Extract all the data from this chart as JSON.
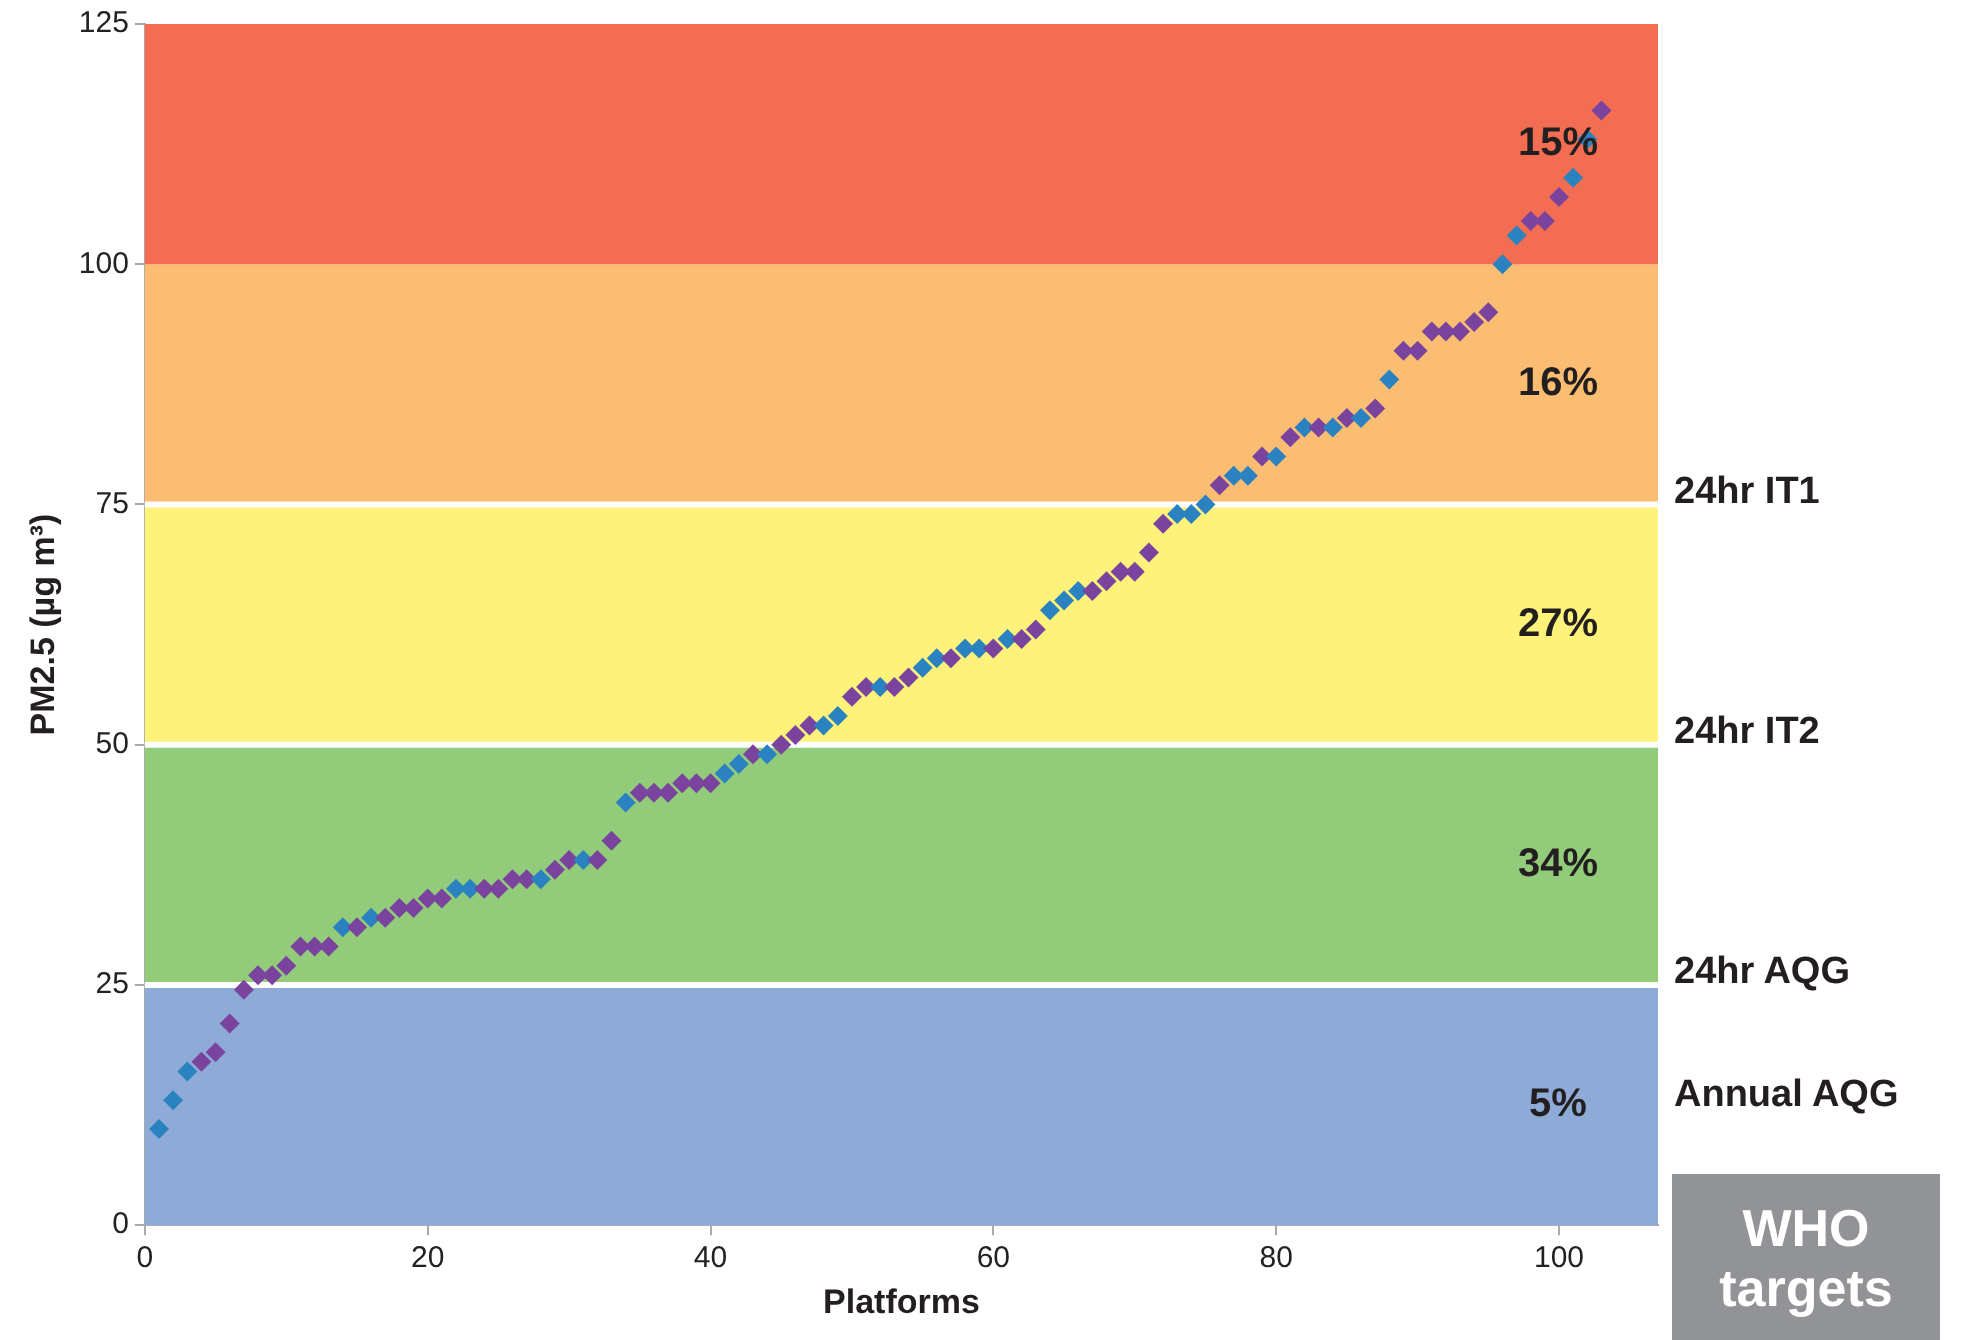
{
  "chart_data": {
    "type": "scatter",
    "xlabel": "Platforms",
    "ylabel": "PM2.5 (µg m³)",
    "x": [
      1,
      2,
      3,
      4,
      5,
      6,
      7,
      8,
      9,
      10,
      11,
      12,
      13,
      14,
      15,
      16,
      17,
      18,
      19,
      20,
      21,
      22,
      23,
      24,
      25,
      26,
      27,
      28,
      29,
      30,
      31,
      32,
      33,
      34,
      35,
      36,
      37,
      38,
      39,
      40,
      41,
      42,
      43,
      44,
      45,
      46,
      47,
      48,
      49,
      50,
      51,
      52,
      53,
      54,
      55,
      56,
      57,
      58,
      59,
      60,
      61,
      62,
      63,
      64,
      65,
      66,
      67,
      68,
      69,
      70,
      71,
      72,
      73,
      74,
      75,
      76,
      77,
      78,
      79,
      80,
      81,
      82,
      83,
      84,
      85,
      86,
      87,
      88,
      89,
      90,
      91,
      92,
      93,
      94,
      95,
      96,
      97,
      98,
      99,
      100,
      101,
      102,
      103
    ],
    "values": [
      10,
      13,
      16,
      17,
      18,
      21,
      24.5,
      26,
      26,
      27,
      29,
      29,
      29,
      31,
      31,
      32,
      32,
      33,
      33,
      34,
      34,
      35,
      35,
      35,
      35,
      36,
      36,
      36,
      37,
      38,
      38,
      38,
      40,
      44,
      45,
      45,
      45,
      46,
      46,
      46,
      47,
      48,
      49,
      49,
      50,
      51,
      52,
      52,
      53,
      55,
      56,
      56,
      56,
      57,
      58,
      59,
      59,
      60,
      60,
      60,
      61,
      61,
      62,
      64,
      65,
      66,
      66,
      67,
      68,
      68,
      70,
      73,
      74,
      74,
      75,
      77,
      78,
      78,
      80,
      80,
      82,
      83,
      83,
      83,
      84,
      84,
      85,
      88,
      91,
      91,
      93,
      93,
      93,
      94,
      95,
      100,
      103,
      104.5,
      104.5,
      107,
      109,
      113,
      116
    ],
    "colors": [
      "#2b82c0",
      "#2b82c0",
      "#2b82c0",
      "#7a449e",
      "#7a449e",
      "#7a449e",
      "#7a449e",
      "#7a449e",
      "#7a449e",
      "#7a449e",
      "#7a449e",
      "#7a449e",
      "#7a449e",
      "#2b82c0",
      "#7a449e",
      "#2b82c0",
      "#7a449e",
      "#7a449e",
      "#7a449e",
      "#7a449e",
      "#7a449e",
      "#2b82c0",
      "#2b82c0",
      "#7a449e",
      "#7a449e",
      "#7a449e",
      "#7a449e",
      "#2b82c0",
      "#7a449e",
      "#7a449e",
      "#2b82c0",
      "#7a449e",
      "#7a449e",
      "#2b82c0",
      "#7a449e",
      "#7a449e",
      "#7a449e",
      "#7a449e",
      "#7a449e",
      "#7a449e",
      "#2b82c0",
      "#2b82c0",
      "#7a449e",
      "#2b82c0",
      "#7a449e",
      "#7a449e",
      "#7a449e",
      "#2b82c0",
      "#2b82c0",
      "#7a449e",
      "#7a449e",
      "#2b82c0",
      "#7a449e",
      "#7a449e",
      "#2b82c0",
      "#2b82c0",
      "#7a449e",
      "#2b82c0",
      "#2b82c0",
      "#7a449e",
      "#2b82c0",
      "#7a449e",
      "#7a449e",
      "#2b82c0",
      "#2b82c0",
      "#2b82c0",
      "#7a449e",
      "#7a449e",
      "#7a449e",
      "#7a449e",
      "#7a449e",
      "#7a449e",
      "#2b82c0",
      "#2b82c0",
      "#2b82c0",
      "#7a449e",
      "#2b82c0",
      "#2b82c0",
      "#7a449e",
      "#2b82c0",
      "#7a449e",
      "#2b82c0",
      "#7a449e",
      "#2b82c0",
      "#7a449e",
      "#2b82c0",
      "#7a449e",
      "#2b82c0",
      "#7a449e",
      "#7a449e",
      "#7a449e",
      "#7a449e",
      "#7a449e",
      "#7a449e",
      "#7a449e",
      "#2b82c0",
      "#2b82c0",
      "#7a449e",
      "#7a449e",
      "#7a449e",
      "#2b82c0",
      "#2b82c0",
      "#7a449e"
    ],
    "marker": "diamond",
    "xlim": [
      0,
      107
    ],
    "xticks": [
      0,
      20,
      40,
      60,
      80,
      100
    ],
    "ylim": [
      0,
      125
    ],
    "yticks": [
      0,
      25,
      50,
      75,
      100,
      125
    ],
    "grid": false,
    "legend": false,
    "bands": [
      {
        "axis": "y",
        "from": 0,
        "to": 25,
        "label": "5%",
        "color": "#8eabd8"
      },
      {
        "axis": "y",
        "from": 25,
        "to": 50,
        "label": "34%",
        "color": "#92cb7a"
      },
      {
        "axis": "y",
        "from": 50,
        "to": 75,
        "label": "27%",
        "color": "#fef27a"
      },
      {
        "axis": "y",
        "from": 75,
        "to": 100,
        "label": "16%",
        "color": "#fbbd72"
      },
      {
        "axis": "y",
        "from": 100,
        "to": 125,
        "label": "15%",
        "color": "#f26d51"
      }
    ],
    "ref_lines": [
      {
        "axis": "y",
        "value": 25,
        "label": "24hr AQG",
        "color": "#ffffff"
      },
      {
        "axis": "y",
        "value": 50,
        "label": "24hr IT2",
        "color": "#ffffff"
      },
      {
        "axis": "y",
        "value": 75,
        "label": "24hr IT1",
        "color": "#ffffff"
      }
    ],
    "annotations": [
      "Annual AQG",
      "WHO targets"
    ]
  }
}
